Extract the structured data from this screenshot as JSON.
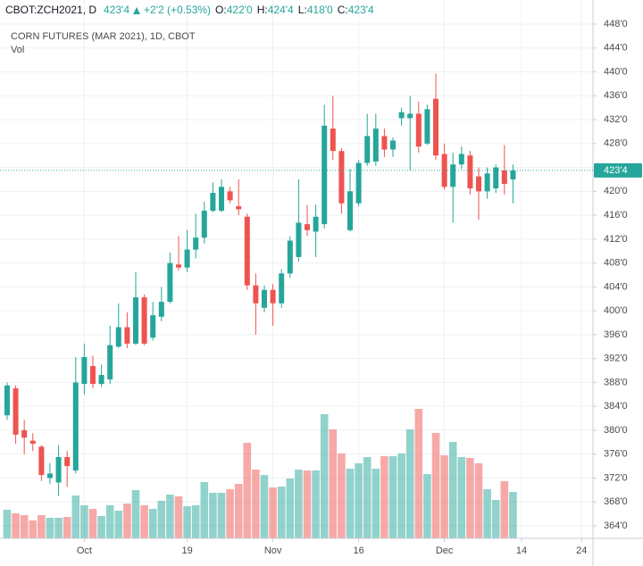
{
  "header": {
    "symbol": "CBOT:ZCH2021, D",
    "last": "423'4",
    "change": "+2'2 (+0.53%)",
    "ohlc": [
      {
        "key": "O:",
        "value": "422'0"
      },
      {
        "key": "H:",
        "value": "424'4"
      },
      {
        "key": "L:",
        "value": "418'0"
      },
      {
        "key": "C:",
        "value": "423'4"
      }
    ]
  },
  "chart_data": {
    "type": "candlestick",
    "title": "CORN FUTURES (MAR 2021), 1D, CBOT",
    "volume_label": "Vol",
    "up_color": "#26a69a",
    "down_color": "#ef5350",
    "grid": true,
    "last_price": {
      "value": 423.5,
      "label": "423'4"
    },
    "x": [
      0,
      1,
      2,
      3,
      4,
      5,
      6,
      7,
      8,
      9,
      10,
      11,
      12,
      13,
      14,
      15,
      16,
      17,
      18,
      19,
      20,
      21,
      22,
      23,
      24,
      25,
      26,
      27,
      28,
      29,
      30,
      31,
      32,
      33,
      34,
      35,
      36,
      37,
      38,
      39,
      40,
      41,
      42,
      43,
      44,
      45,
      46,
      47,
      48,
      49,
      50,
      51,
      52,
      53,
      54,
      55,
      56,
      57,
      58,
      59
    ],
    "open": [
      382.5,
      387,
      380,
      378.25,
      377.25,
      372,
      371.25,
      375.5,
      373.25,
      387.75,
      390.75,
      387.75,
      388.5,
      394,
      397.25,
      394.5,
      402.25,
      395.5,
      399,
      401.5,
      407.75,
      407.25,
      410.25,
      412.25,
      416.75,
      416.75,
      420,
      417.5,
      415.75,
      404.25,
      400.5,
      403.5,
      401.25,
      406.25,
      409,
      414.5,
      413.25,
      414.5,
      430.5,
      426.75,
      413.5,
      418,
      424.75,
      425,
      429.25,
      427,
      432.25,
      432.25,
      433,
      428,
      435.5,
      426.25,
      420.75,
      424.5,
      426,
      422.5,
      420,
      420.5,
      423.5,
      422
    ],
    "high": [
      388,
      387.5,
      381.75,
      379.5,
      377.5,
      374.5,
      377.5,
      376.5,
      392.25,
      394.5,
      392.5,
      391,
      397.5,
      401.25,
      399.75,
      406.5,
      402.75,
      401.5,
      404,
      409.75,
      412.5,
      413.5,
      416.25,
      418.25,
      421.5,
      422,
      420.75,
      422,
      416.25,
      406.25,
      404.25,
      404.5,
      407,
      412.5,
      422,
      417.75,
      417.75,
      434.5,
      436,
      427.25,
      423.75,
      425.25,
      433,
      433,
      430.5,
      429,
      434,
      436,
      435,
      434.5,
      439.75,
      428,
      426.5,
      427.5,
      426.75,
      424,
      424,
      424.5,
      427.75,
      424.5
    ],
    "low": [
      381.75,
      377.75,
      376,
      376.5,
      371.5,
      371,
      369,
      370.5,
      372.75,
      386,
      387,
      387.25,
      387.75,
      393.75,
      393.75,
      394.25,
      394.25,
      395,
      398.25,
      401.25,
      406.75,
      406.5,
      408.75,
      411.25,
      416.5,
      416.5,
      418,
      416,
      403.5,
      396,
      399.75,
      397.5,
      400.5,
      405.5,
      408.25,
      412.5,
      409,
      413.75,
      425.25,
      416.25,
      413.25,
      417.5,
      424.25,
      424.25,
      425.75,
      425.75,
      431,
      423.5,
      426.5,
      427.75,
      425.25,
      420.25,
      414.75,
      423.75,
      419.5,
      415.25,
      418.75,
      419.75,
      419.5,
      418
    ],
    "close": [
      387.5,
      379.25,
      378.75,
      377.75,
      372.5,
      372.75,
      375.5,
      374,
      388,
      392.25,
      387.75,
      389.25,
      394.25,
      397.25,
      394.5,
      402.25,
      394.5,
      399.25,
      401.5,
      408,
      407.25,
      410.25,
      412.25,
      416.75,
      419.75,
      420.75,
      418.5,
      417,
      404.25,
      401.25,
      403.5,
      401.25,
      406.25,
      411.75,
      414.75,
      413.5,
      415.75,
      431,
      426.75,
      418,
      420,
      424.75,
      429.25,
      430.5,
      427,
      428.5,
      433.25,
      433,
      427.5,
      433.75,
      426,
      420.75,
      424.5,
      426.25,
      420.5,
      420,
      423,
      424,
      421.25,
      423.5
    ],
    "volume": [
      32,
      28,
      26,
      20,
      26,
      23,
      23,
      24,
      48,
      37,
      33,
      25,
      37,
      31,
      39,
      54,
      37,
      33,
      42,
      49,
      47,
      36,
      37,
      63,
      51,
      51,
      55,
      61,
      107,
      77,
      71,
      57,
      58,
      67,
      77,
      76,
      76,
      139,
      122,
      95,
      78,
      84,
      91,
      78,
      92,
      92,
      95,
      122,
      145,
      72,
      118,
      93,
      108,
      91,
      90,
      84,
      55,
      43,
      64,
      52
    ],
    "xlim": [
      -0.83,
      68.33
    ],
    "xticks": [
      {
        "value": 9,
        "label": "Oct"
      },
      {
        "value": 21,
        "label": "19"
      },
      {
        "value": 31,
        "label": "Nov"
      },
      {
        "value": 41,
        "label": "16"
      },
      {
        "value": 51,
        "label": "Dec"
      },
      {
        "value": 60,
        "label": "14"
      },
      {
        "value": 67,
        "label": "24"
      }
    ],
    "ylim": [
      361.9,
      448.75
    ],
    "yticks": [
      {
        "value": 364,
        "label": "364'0"
      },
      {
        "value": 368,
        "label": "368'0"
      },
      {
        "value": 372,
        "label": "372'0"
      },
      {
        "value": 376,
        "label": "376'0"
      },
      {
        "value": 380,
        "label": "380'0"
      },
      {
        "value": 384,
        "label": "384'0"
      },
      {
        "value": 388,
        "label": "388'0"
      },
      {
        "value": 392,
        "label": "392'0"
      },
      {
        "value": 396,
        "label": "396'0"
      },
      {
        "value": 400,
        "label": "400'0"
      },
      {
        "value": 404,
        "label": "404'0"
      },
      {
        "value": 408,
        "label": "408'0"
      },
      {
        "value": 412,
        "label": "412'0"
      },
      {
        "value": 416,
        "label": "416'0"
      },
      {
        "value": 420,
        "label": "420'0"
      },
      {
        "value": 424,
        "label": "424'0"
      },
      {
        "value": 428,
        "label": "428'0"
      },
      {
        "value": 432,
        "label": "432'0"
      },
      {
        "value": 436,
        "label": "436'0"
      },
      {
        "value": 440,
        "label": "440'0"
      },
      {
        "value": 444,
        "label": "444'0"
      },
      {
        "value": 448,
        "label": "448'0"
      }
    ]
  }
}
